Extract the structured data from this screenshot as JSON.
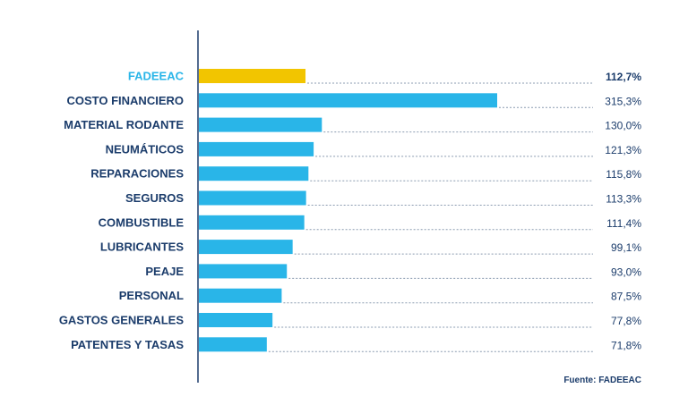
{
  "chart_data": {
    "type": "bar",
    "orientation": "horizontal",
    "categories": [
      "FADEEAC",
      "COSTO FINANCIERO",
      "MATERIAL RODANTE",
      "NEUMÁTICOS",
      "REPARACIONES",
      "SEGUROS",
      "COMBUSTIBLE",
      "LUBRICANTES",
      "PEAJE",
      "PERSONAL",
      "GASTOS GENERALES",
      "PATENTES Y TASAS"
    ],
    "values": [
      112.7,
      315.3,
      130.0,
      121.3,
      115.8,
      113.3,
      111.4,
      99.1,
      93.0,
      87.5,
      77.8,
      71.8
    ],
    "value_labels": [
      "112,7%",
      "315,3%",
      "130,0%",
      "121,3%",
      "115,8%",
      "113,3%",
      "111,4%",
      "99,1%",
      "93,0%",
      "87,5%",
      "77,8%",
      "71,8%"
    ],
    "highlight_index": 0,
    "xlim": [
      0,
      315.3
    ],
    "grid": false,
    "legend": "none"
  },
  "colors": {
    "bar": "#29b5e8",
    "highlight_bar": "#f2c500",
    "highlight_label": "#29b5e8",
    "label": "#1b3c6b",
    "axis": "#1b3c6b",
    "dots": "#8a9bb0"
  },
  "source": "Fuente: FADEEAC"
}
